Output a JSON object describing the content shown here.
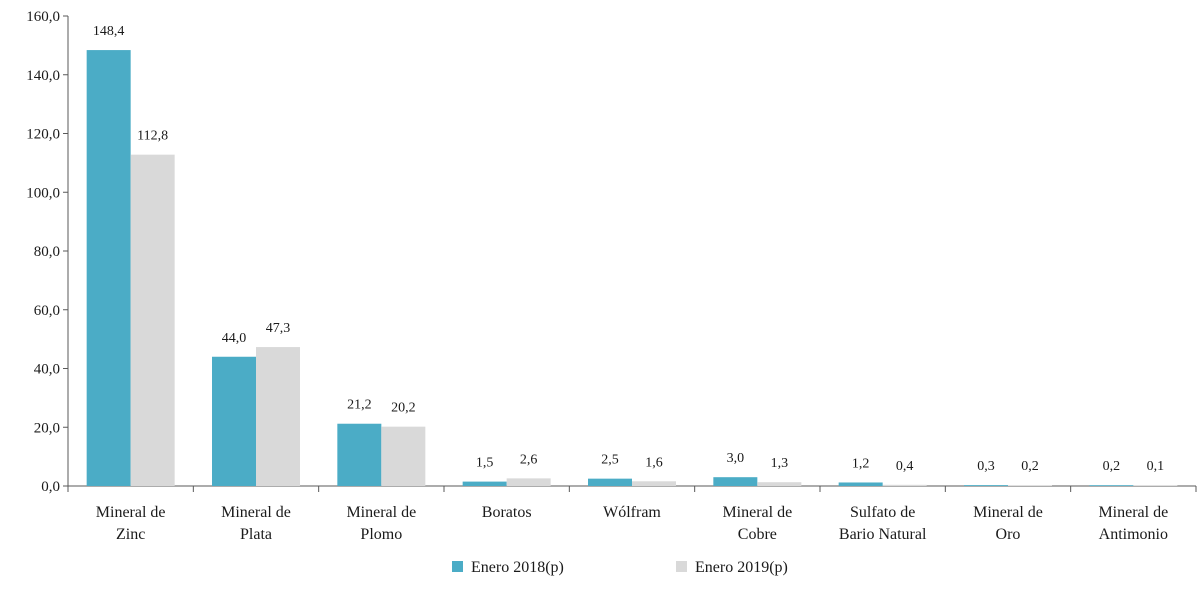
{
  "chart_data": {
    "type": "bar",
    "categories": [
      [
        "Mineral de",
        "Zinc"
      ],
      [
        "Mineral de",
        "Plata"
      ],
      [
        "Mineral de",
        "Plomo"
      ],
      [
        "Boratos"
      ],
      [
        "Wólfram"
      ],
      [
        "Mineral de",
        "Cobre"
      ],
      [
        "Sulfato de",
        "Bario Natural"
      ],
      [
        "Mineral de",
        "Oro"
      ],
      [
        "Mineral de",
        "Antimonio"
      ]
    ],
    "series": [
      {
        "name": "Enero 2018(p)",
        "color": "#4BACC6",
        "values": [
          148.4,
          44.0,
          21.2,
          1.5,
          2.5,
          3.0,
          1.2,
          0.3,
          0.2
        ],
        "labels": [
          "148,4",
          "44,0",
          "21,2",
          "1,5",
          "2,5",
          "3,0",
          "1,2",
          "0,3",
          "0,2"
        ]
      },
      {
        "name": "Enero 2019(p)",
        "color": "#D9D9D9",
        "values": [
          112.8,
          47.3,
          20.2,
          2.6,
          1.6,
          1.3,
          0.4,
          0.2,
          0.1
        ],
        "labels": [
          "112,8",
          "47,3",
          "20,2",
          "2,6",
          "1,6",
          "1,3",
          "0,4",
          "0,2",
          "0,1"
        ]
      }
    ],
    "ylim": [
      0,
      160
    ],
    "yticks": [
      0,
      20,
      40,
      60,
      80,
      100,
      120,
      140,
      160
    ],
    "ytick_labels": [
      "0,0",
      "20,0",
      "40,0",
      "60,0",
      "80,0",
      "100,0",
      "120,0",
      "140,0",
      "160,0"
    ],
    "grid": false,
    "legend_position": "bottom",
    "title": "",
    "xlabel": "",
    "ylabel": ""
  }
}
